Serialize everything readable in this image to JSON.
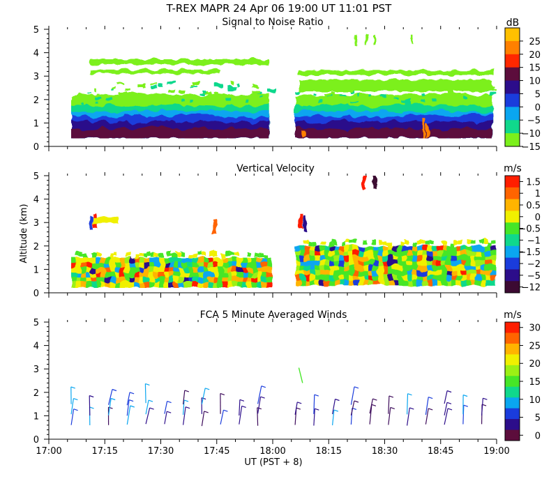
{
  "title": "T-REX  MAPR 24 Apr 06  19:00 UT  11:01  PST",
  "xlabel": "UT  (PST + 8)",
  "ylabel": "Altitude (km)",
  "x_ticks": [
    "17:00",
    "17:15",
    "17:30",
    "17:45",
    "18:00",
    "18:15",
    "18:30",
    "18:45",
    "19:00"
  ],
  "y_ticks": [
    "0",
    "1",
    "2",
    "3",
    "4",
    "5"
  ],
  "chart_data": [
    {
      "type": "heatmap",
      "title": "Signal to Noise Ratio",
      "units": "dB",
      "xlim": [
        "17:00",
        "19:00"
      ],
      "ylim": [
        0,
        5
      ],
      "colorbar_ticks": [
        "25",
        "20",
        "15",
        "10",
        "5",
        "0",
        "−5",
        "−10",
        "−15"
      ],
      "colorbar_colors": [
        "#ffc000",
        "#ff8000",
        "#ff2800",
        "#5c0d3c",
        "#2c0d8a",
        "#1a3cdc",
        "#0aa6f0",
        "#10d88c",
        "#7cf01c"
      ],
      "segments": [
        {
          "start": "17:06",
          "end": "17:59",
          "base_km": 0.35
        },
        {
          "start": "18:06",
          "end": "18:59",
          "base_km": 0.35
        }
      ],
      "layers": [
        {
          "min_km": 0.35,
          "max_km": 0.75,
          "color": "#5c0d3c"
        },
        {
          "min_km": 0.75,
          "max_km": 1.05,
          "color": "#2c0d8a"
        },
        {
          "min_km": 1.05,
          "max_km": 1.3,
          "color": "#1a3cdc"
        },
        {
          "min_km": 1.3,
          "max_km": 1.5,
          "color": "#0aa6f0"
        },
        {
          "min_km": 1.5,
          "max_km": 1.75,
          "color": "#10d88c"
        },
        {
          "min_km": 1.75,
          "max_km": 2.2,
          "color": "#7cf01c"
        }
      ]
    },
    {
      "type": "heatmap",
      "title": "Vertical Velocity",
      "units": "m/s",
      "xlim": [
        "17:00",
        "19:00"
      ],
      "ylim": [
        0,
        5
      ],
      "colorbar_ticks": [
        "1.5",
        "1",
        "0.5",
        "0",
        "−0.5",
        "−1",
        "−1.5",
        "−2",
        "−5",
        "−12"
      ],
      "colorbar_colors": [
        "#ff1e00",
        "#ff6400",
        "#ffb400",
        "#f0f000",
        "#46e628",
        "#10d88c",
        "#0aa6f0",
        "#1a3cdc",
        "#2c0d8a",
        "#3c0a32"
      ],
      "segments": [
        {
          "start": "17:06",
          "end": "17:59",
          "top_km": 1.5
        },
        {
          "start": "18:06",
          "end": "18:59",
          "top_km": 2.0
        }
      ]
    },
    {
      "type": "barbs",
      "title": "FCA 5 Minute Averaged Winds",
      "units": "m/s",
      "xlim": [
        "17:00",
        "19:00"
      ],
      "ylim": [
        0,
        5
      ],
      "colorbar_ticks": [
        "30",
        "25",
        "20",
        "15",
        "10",
        "5",
        "0"
      ],
      "colorbar_colors": [
        "#ff1e00",
        "#ff6400",
        "#ffb400",
        "#f0f000",
        "#9cf014",
        "#46e628",
        "#10d88c",
        "#0aa6f0",
        "#1a3cdc",
        "#2c0d8a",
        "#5c0d3c"
      ]
    }
  ]
}
